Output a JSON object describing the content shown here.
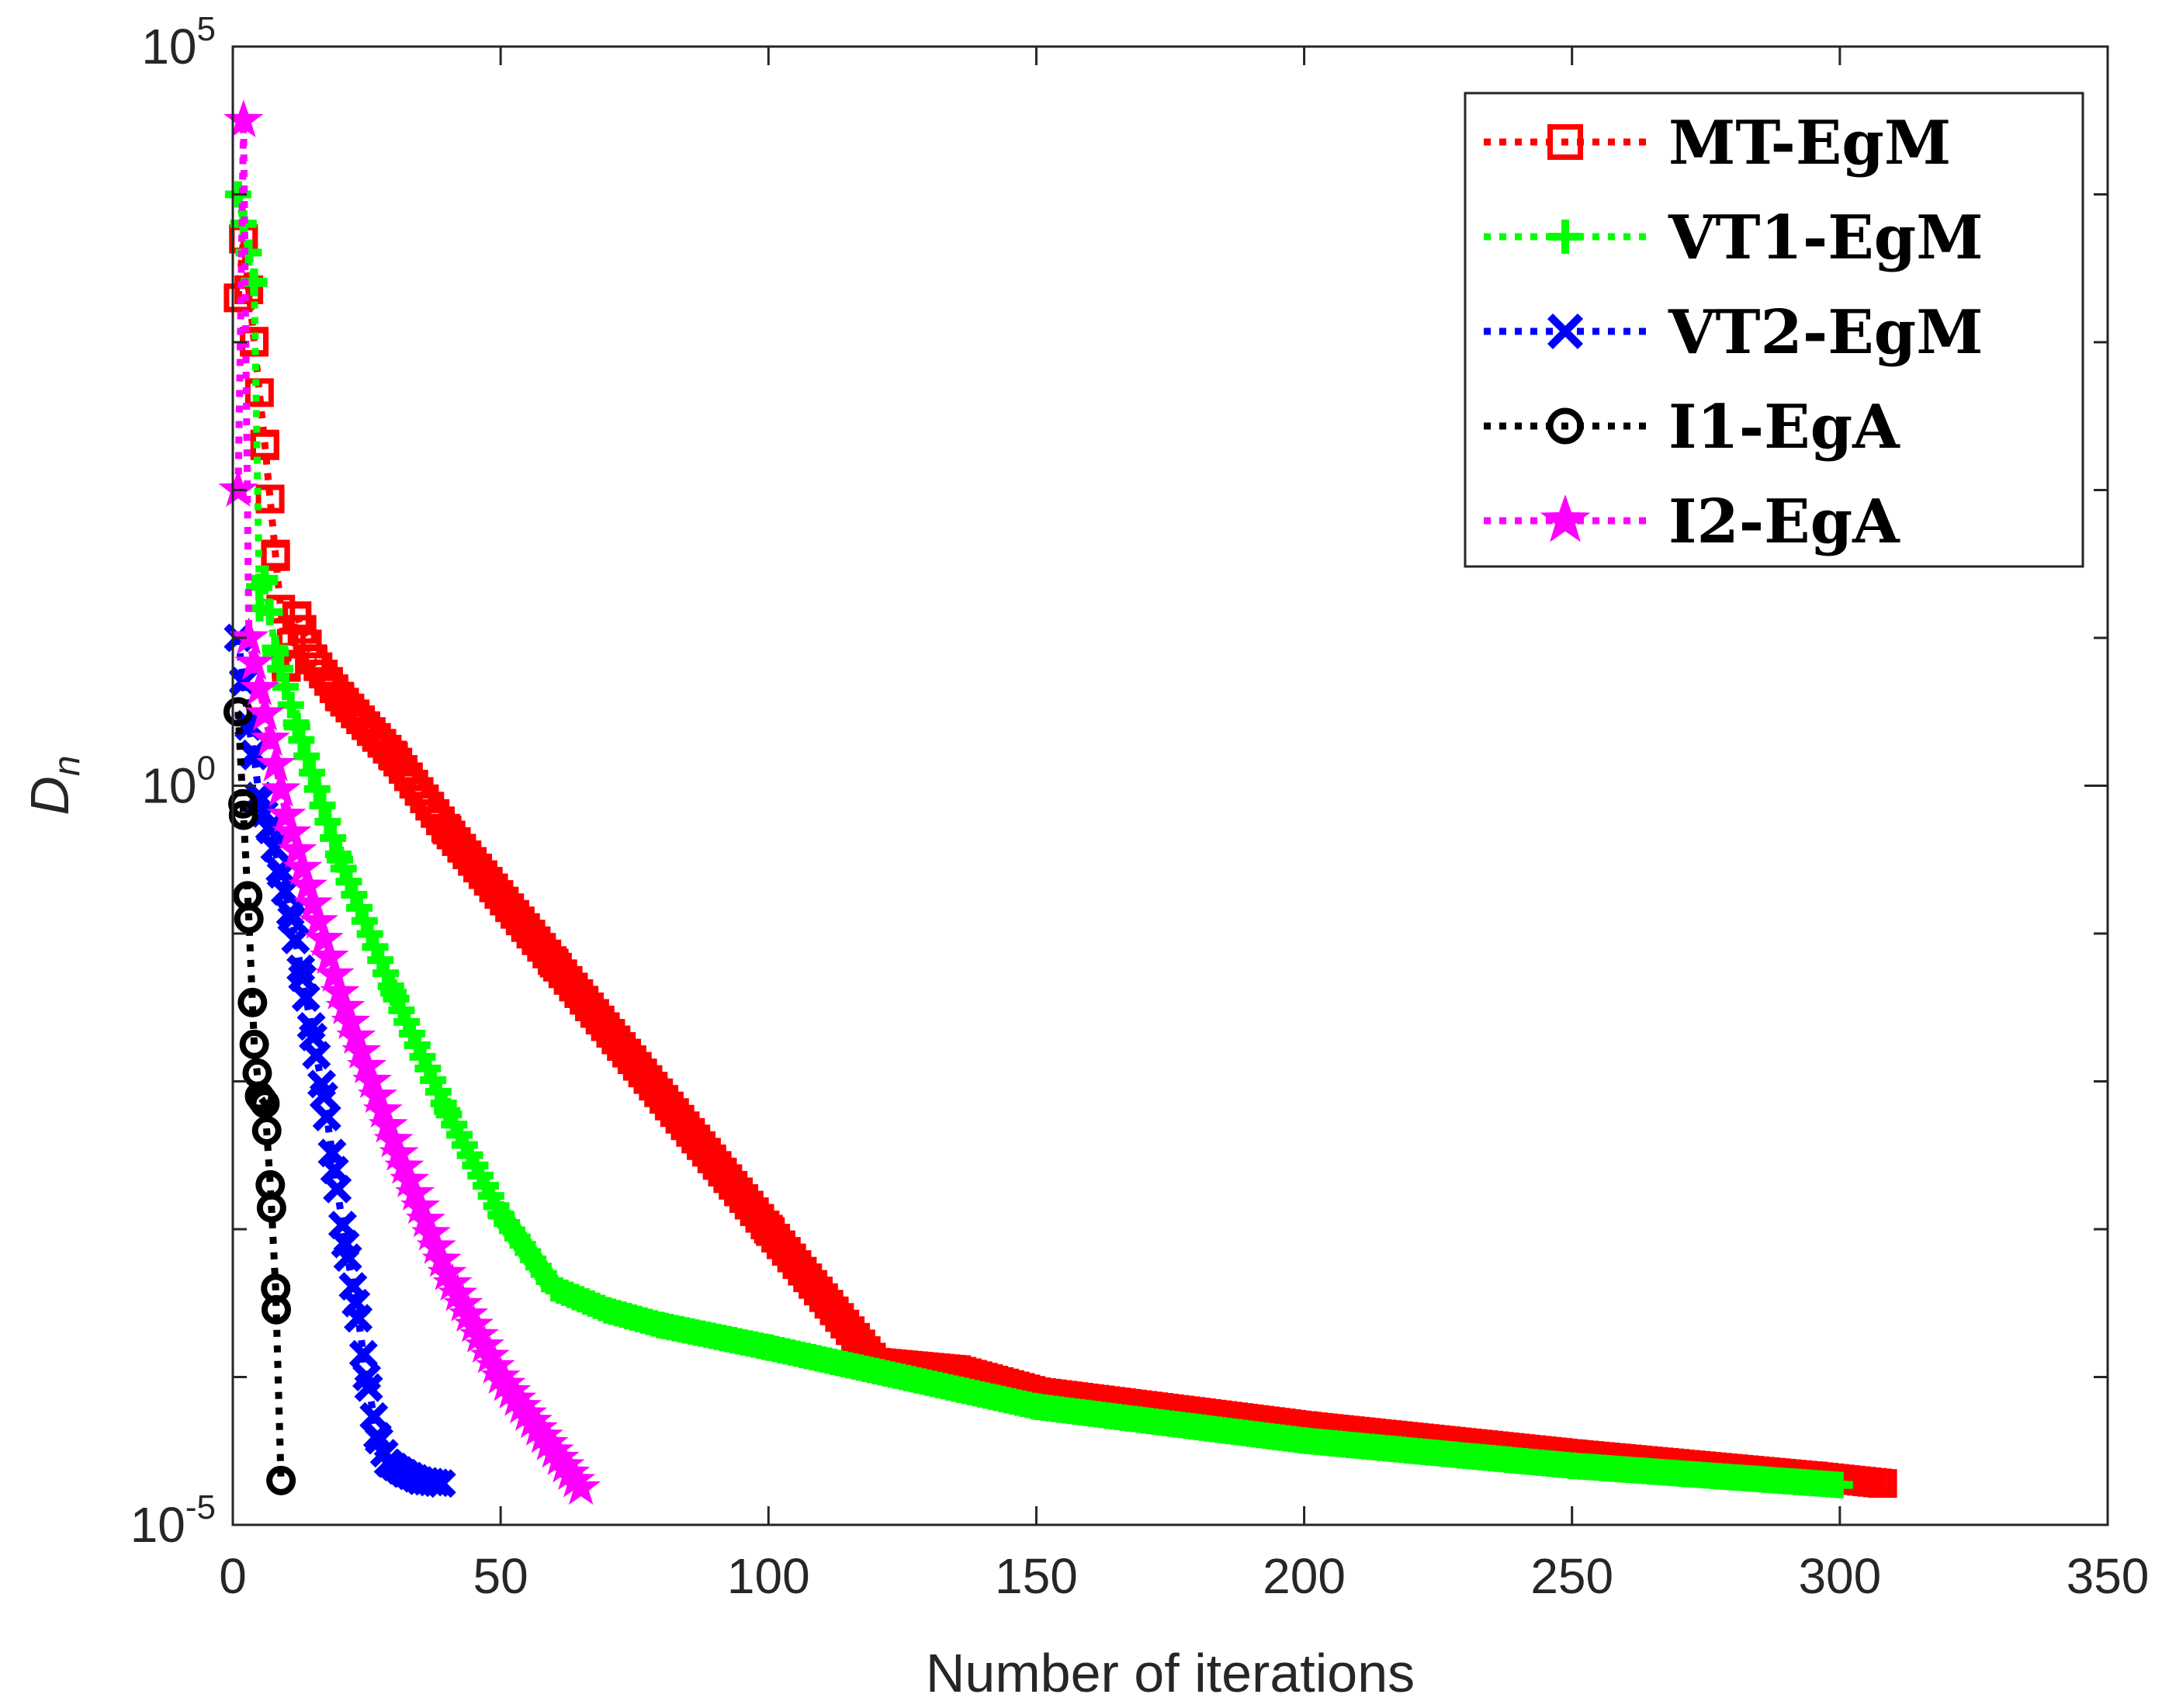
{
  "chart_data": {
    "type": "line",
    "xlabel": "Number of iterations",
    "ylabel_base": "D",
    "ylabel_sub": "n",
    "xscale": "linear",
    "yscale": "log",
    "xlim": [
      0,
      350
    ],
    "ylim_exp": [
      -5,
      5
    ],
    "xticks": [
      0,
      50,
      100,
      150,
      200,
      250,
      300,
      350
    ],
    "xtick_labels": [
      "0",
      "50",
      "100",
      "150",
      "200",
      "250",
      "300",
      "350"
    ],
    "ytick_exps": [
      -5,
      0,
      5
    ],
    "ytick_bases": [
      "10",
      "10",
      "10"
    ],
    "ytick_sups": [
      "-5",
      "0",
      "5"
    ],
    "legend_position": "top-right",
    "series": [
      {
        "name": "MT-EgM",
        "color": "#ff0000",
        "marker": "square",
        "n_points": 310,
        "anchors": [
          [
            1,
            3.3
          ],
          [
            2,
            3.7
          ],
          [
            4,
            3.0
          ],
          [
            6,
            2.3
          ],
          [
            8,
            1.55
          ],
          [
            10,
            0.8
          ],
          [
            12,
            1.15
          ],
          [
            15,
            0.85
          ],
          [
            20,
            0.6
          ],
          [
            30,
            0.2
          ],
          [
            40,
            -0.3
          ],
          [
            60,
            -1.2
          ],
          [
            100,
            -3.0
          ],
          [
            120,
            -3.9
          ],
          [
            135,
            -3.95
          ],
          [
            150,
            -4.1
          ],
          [
            200,
            -4.33
          ],
          [
            250,
            -4.52
          ],
          [
            295,
            -4.67
          ],
          [
            308,
            -4.72
          ]
        ]
      },
      {
        "name": "VT1-EgM",
        "color": "#00ff00",
        "marker": "plus",
        "n_points": 305,
        "anchors": [
          [
            1,
            4.0
          ],
          [
            2,
            3.8
          ],
          [
            4,
            3.4
          ],
          [
            5,
            1.2
          ],
          [
            6,
            1.4
          ],
          [
            8,
            0.9
          ],
          [
            12,
            0.4
          ],
          [
            20,
            -0.5
          ],
          [
            30,
            -1.4
          ],
          [
            40,
            -2.2
          ],
          [
            50,
            -2.9
          ],
          [
            60,
            -3.4
          ],
          [
            70,
            -3.55
          ],
          [
            80,
            -3.65
          ],
          [
            100,
            -3.8
          ],
          [
            150,
            -4.2
          ],
          [
            200,
            -4.43
          ],
          [
            250,
            -4.6
          ],
          [
            300,
            -4.73
          ]
        ]
      },
      {
        "name": "VT2-EgM",
        "color": "#0000ff",
        "marker": "x",
        "n_points": 40,
        "anchors": [
          [
            1,
            1.0
          ],
          [
            2,
            0.7
          ],
          [
            3,
            0.4
          ],
          [
            4,
            0.2
          ],
          [
            5,
            -0.1
          ],
          [
            7,
            -0.3
          ],
          [
            9,
            -0.6
          ],
          [
            11,
            -0.9
          ],
          [
            13,
            -1.3
          ],
          [
            15,
            -1.7
          ],
          [
            17,
            -2.1
          ],
          [
            19,
            -2.6
          ],
          [
            21,
            -3.1
          ],
          [
            23,
            -3.5
          ],
          [
            25,
            -4.0
          ],
          [
            27,
            -4.4
          ],
          [
            29,
            -4.58
          ],
          [
            32,
            -4.65
          ],
          [
            35,
            -4.7
          ],
          [
            39,
            -4.72
          ]
        ]
      },
      {
        "name": "I1-EgA",
        "color": "#000000",
        "marker": "circle",
        "n_points": 10,
        "anchors": [
          [
            1,
            0.5
          ],
          [
            2,
            -0.2
          ],
          [
            3,
            -0.9
          ],
          [
            4,
            -1.75
          ],
          [
            5,
            -2.1
          ],
          [
            6,
            -2.15
          ],
          [
            7,
            -2.7
          ],
          [
            8,
            -3.4
          ],
          [
            9,
            -4.7
          ]
        ]
      },
      {
        "name": "I2-EgA",
        "color": "#ff00ff",
        "marker": "star",
        "n_points": 65,
        "anchors": [
          [
            1,
            2.0
          ],
          [
            2,
            4.5
          ],
          [
            3,
            1.0
          ],
          [
            10,
            -0.2
          ],
          [
            20,
            -1.4
          ],
          [
            30,
            -2.4
          ],
          [
            40,
            -3.3
          ],
          [
            50,
            -4.0
          ],
          [
            60,
            -4.5
          ],
          [
            65,
            -4.75
          ]
        ]
      }
    ]
  }
}
